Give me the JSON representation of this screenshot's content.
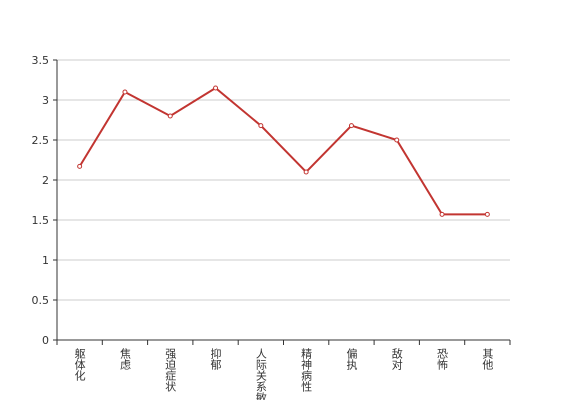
{
  "chart_data": {
    "type": "line",
    "categories": [
      "躯体化",
      "焦虑",
      "强迫症状",
      "抑郁",
      "人际关系敏感",
      "精神病性",
      "偏执",
      "敌对",
      "恐怖",
      "其他"
    ],
    "values": [
      2.17,
      3.1,
      2.8,
      3.15,
      2.68,
      2.1,
      2.68,
      2.5,
      1.57,
      1.57
    ],
    "color": "#c23531",
    "ylim": [
      0,
      3.5
    ],
    "yticks": [
      0,
      0.5,
      1,
      1.5,
      2,
      2.5,
      3,
      3.5
    ],
    "grid": true
  }
}
